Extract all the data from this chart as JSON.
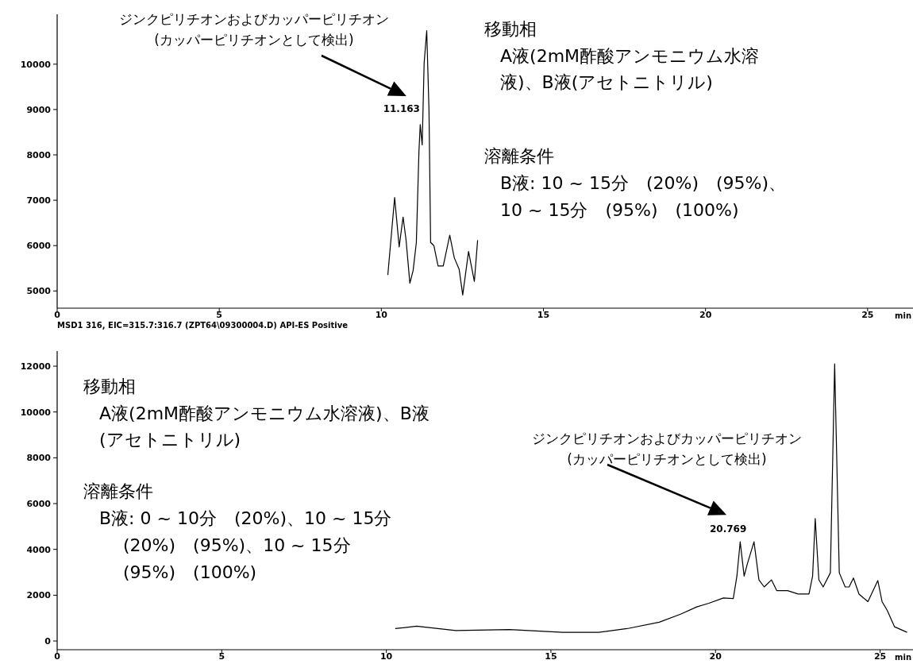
{
  "chart_data": [
    {
      "type": "line",
      "xlabel": "min",
      "xlim": [
        0,
        26.4
      ],
      "ylim": [
        4620,
        11100
      ],
      "xticks": [
        0,
        5,
        10,
        15,
        20,
        25
      ],
      "yticks": [
        5000,
        6000,
        7000,
        8000,
        9000,
        10000
      ],
      "marker": "none",
      "line_style": "solid",
      "series": [
        {
          "color": "#000000",
          "x": [
            10.2,
            10.41,
            10.55,
            10.67,
            10.76,
            10.88,
            10.98,
            11.08,
            11.16,
            11.2,
            11.26,
            11.32,
            11.4,
            11.47,
            11.52,
            11.62,
            11.75,
            11.91,
            12.11,
            12.25,
            12.4,
            12.51,
            12.69,
            12.87,
            12.97
          ],
          "values": [
            5350,
            7060,
            5970,
            6630,
            6140,
            5170,
            5450,
            6070,
            8080,
            8670,
            8220,
            10020,
            10740,
            8980,
            6070,
            6000,
            5550,
            5550,
            6230,
            5730,
            5480,
            4910,
            5870,
            5210,
            6120
          ]
        }
      ],
      "annotations": [
        "ジンクピリチオンおよびカッパーピリチオン(カッパーピリチオンとして検出)",
        {
          "text": "11.163",
          "x": 11.163,
          "y": 8700
        },
        "移動相",
        "A液(2mM酢酸アンモニウム水溶液)、B液(アセトニトリル)",
        "溶離条件",
        "B液: 10 ~ 15分　(20%)　(95%)、",
        "10 ~ 15分　(95%)　(100%)"
      ]
    },
    {
      "type": "line",
      "title": "MSD1 316, EIC=315.7:316.7 (ZPT64\\09300004.D) API-ES Positive",
      "xlabel": "min",
      "xlim": [
        0,
        26
      ],
      "ylim": [
        -380,
        12660
      ],
      "xticks": [
        0,
        5,
        10,
        15,
        20,
        25
      ],
      "yticks": [
        0,
        2000,
        4000,
        6000,
        8000,
        10000,
        12000
      ],
      "marker": "none",
      "line_style": "solid",
      "series": [
        {
          "color": "#000000",
          "x": [
            10.27,
            10.92,
            12.11,
            13.74,
            15.36,
            16.45,
            17.31,
            18.29,
            18.94,
            19.43,
            19.8,
            20.24,
            20.54,
            20.65,
            20.75,
            20.87,
            20.97,
            21.17,
            21.32,
            21.48,
            21.7,
            21.86,
            22.19,
            22.51,
            22.84,
            22.95,
            23.03,
            23.14,
            23.27,
            23.49,
            23.62,
            23.76,
            23.94,
            24.06,
            24.19,
            24.36,
            24.63,
            24.93,
            25.06,
            25.22,
            25.44,
            25.82
          ],
          "values": [
            540,
            650,
            460,
            500,
            380,
            380,
            540,
            820,
            1170,
            1490,
            1650,
            1880,
            1850,
            2830,
            4330,
            2830,
            3380,
            4330,
            2670,
            2360,
            2670,
            2200,
            2200,
            2050,
            2050,
            2830,
            5350,
            2670,
            2360,
            2980,
            12100,
            2980,
            2360,
            2360,
            2750,
            2050,
            1720,
            2640,
            1720,
            1330,
            620,
            380
          ]
        }
      ],
      "annotations": [
        "ジンクピリチオンおよびカッパーピリチオン(カッパーピリチオンとして検出)",
        {
          "text": "20.769",
          "x": 20.769,
          "y": 4330
        },
        "移動相",
        "A液(2mM酢酸アンモニウム水溶液)、B液(アセトニトリル)",
        "溶離条件",
        "B液: 0 ~ 10分　(20%)、10 ~ 15分",
        "(20%)　(95%)、10 ~ 15分",
        "(95%)　(100%)"
      ]
    }
  ]
}
